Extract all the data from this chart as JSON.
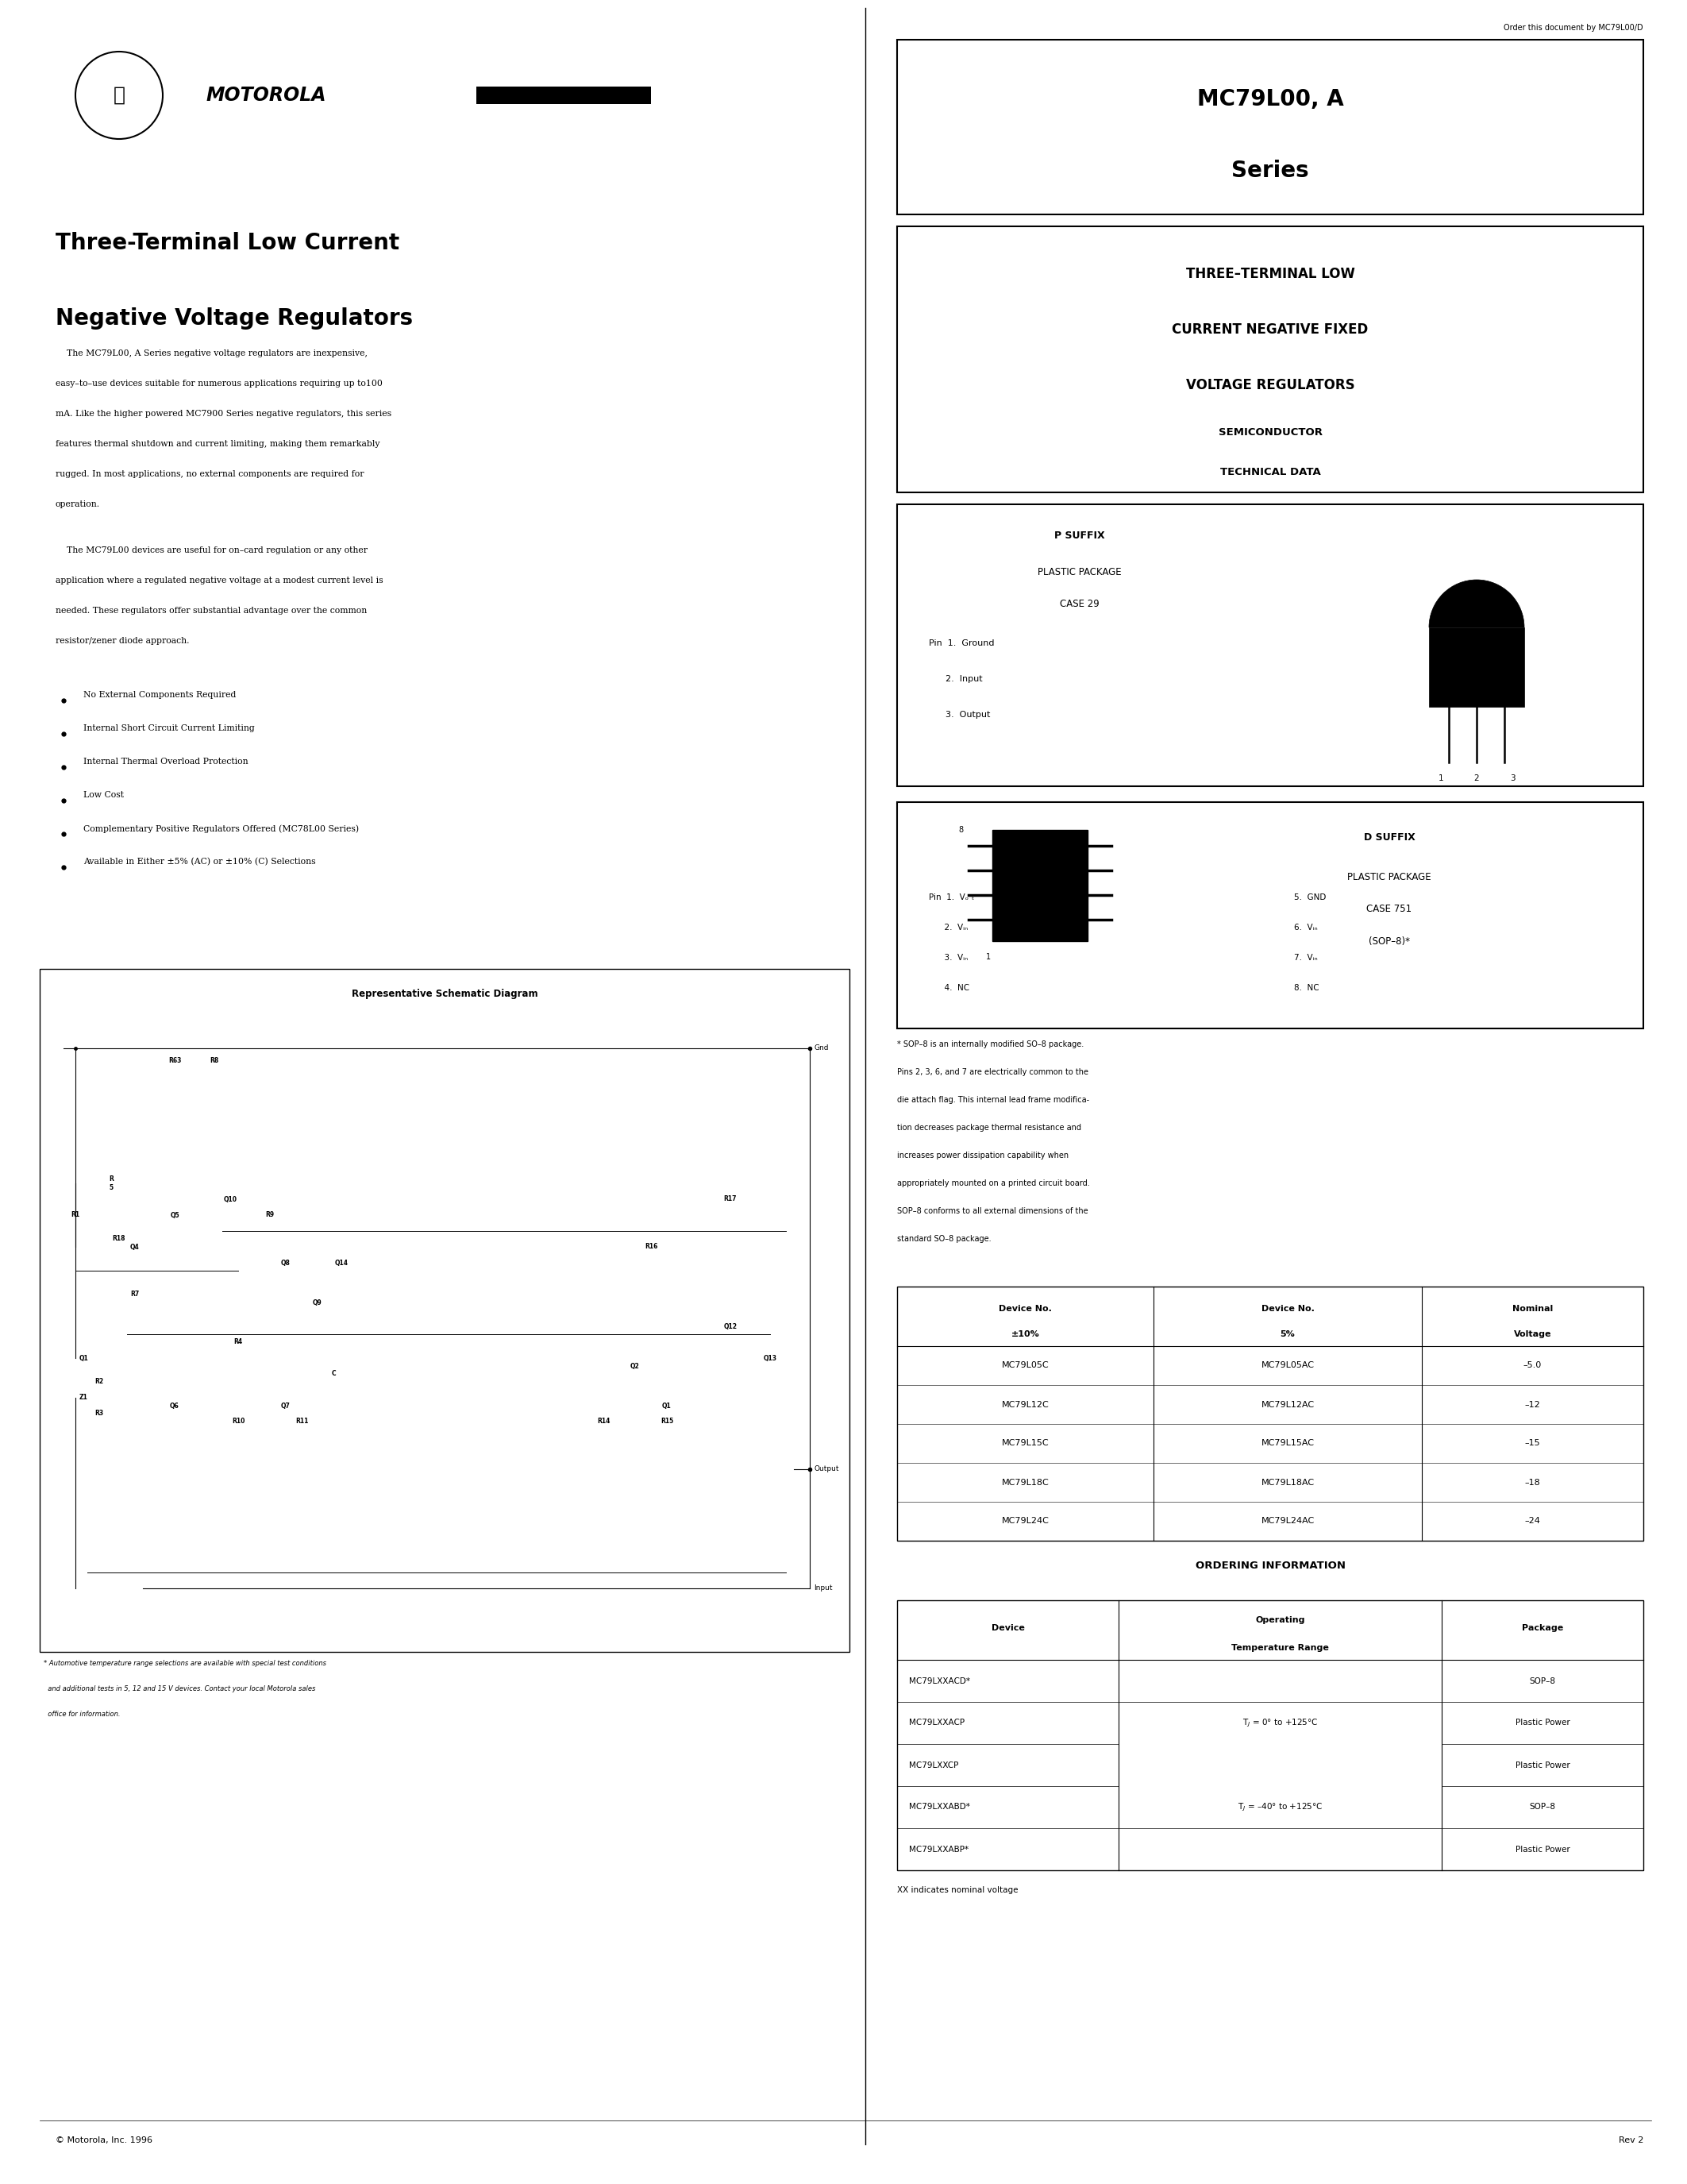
{
  "bg_color": "#ffffff",
  "text_color": "#000000",
  "page_width": 21.25,
  "page_height": 27.5,
  "order_text": "Order this document by MC79L00/D",
  "header_title_line1": "Three-Terminal Low Current",
  "header_title_line2": "Negative Voltage Regulators",
  "body_para1_lines": [
    "    The MC79L00, A Series negative voltage regulators are inexpensive,",
    "easy–to–use devices suitable for numerous applications requiring up to100",
    "mA. Like the higher powered MC7900 Series negative regulators, this series",
    "features thermal shutdown and current limiting, making them remarkably",
    "rugged. In most applications, no external components are required for",
    "operation."
  ],
  "body_para2_lines": [
    "    The MC79L00 devices are useful for on–card regulation or any other",
    "application where a regulated negative voltage at a modest current level is",
    "needed. These regulators offer substantial advantage over the common",
    "resistor/zener diode approach."
  ],
  "bullets": [
    "No External Components Required",
    "Internal Short Circuit Current Limiting",
    "Internal Thermal Overload Protection",
    "Low Cost",
    "Complementary Positive Regulators Offered (MC78L00 Series)",
    "Available in Either ±5% (AC) or ±10% (C) Selections"
  ],
  "schematic_title": "Representative Schematic Diagram",
  "schematic_note_line1": "* Automotive temperature range selections are available with special test conditions",
  "schematic_note_line2": "  and additional tests in 5, 12 and 15 V devices. Contact your local Motorola sales",
  "schematic_note_line3": "  office for information.",
  "p_suffix_title": "P SUFFIX",
  "p_suffix_line1": "PLASTIC PACKAGE",
  "p_suffix_line2": "CASE 29",
  "p_suffix_pin1": "Pin  1.  Ground",
  "p_suffix_pin2": "      2.  Input",
  "p_suffix_pin3": "      3.  Output",
  "d_suffix_title": "D SUFFIX",
  "d_suffix_line1": "PLASTIC PACKAGE",
  "d_suffix_line2": "CASE 751",
  "d_suffix_line3": "(SOP–8)*",
  "sop_note_lines": [
    "* SOP–8 is an internally modified SO–8 package.",
    "Pins 2, 3, 6, and 7 are electrically common to the",
    "die attach flag. This internal lead frame modifica-",
    "tion decreases package thermal resistance and",
    "increases power dissipation capability when",
    "appropriately mounted on a printed circuit board.",
    "SOP–8 conforms to all external dimensions of the",
    "standard SO–8 package."
  ],
  "device_table_headers": [
    "Device No.",
    "±10%",
    "Device No.",
    "5%",
    "Nominal",
    "Voltage"
  ],
  "device_table_rows": [
    [
      "MC79L05C",
      "MC79L05AC",
      "–5.0"
    ],
    [
      "MC79L12C",
      "MC79L12AC",
      "–12"
    ],
    [
      "MC79L15C",
      "MC79L15AC",
      "–15"
    ],
    [
      "MC79L18C",
      "MC79L18AC",
      "–18"
    ],
    [
      "MC79L24C",
      "MC79L24AC",
      "–24"
    ]
  ],
  "ordering_title": "ORDERING INFORMATION",
  "ordering_rows": [
    [
      "MC79LXXACD*",
      "",
      "SOP–8"
    ],
    [
      "MC79LXXACP",
      "T_J = 0° to +125°C",
      "Plastic Power"
    ],
    [
      "MC79LXXCP",
      "",
      "Plastic Power"
    ],
    [
      "MC79LXXABD*",
      "",
      "SOP–8"
    ],
    [
      "MC79LXXABP*",
      "T_J = –40° to +125°C",
      "Plastic Power"
    ]
  ],
  "ordering_note": "XX indicates nominal voltage",
  "footer_left": "© Motorola, Inc. 1996",
  "footer_right": "Rev 2"
}
